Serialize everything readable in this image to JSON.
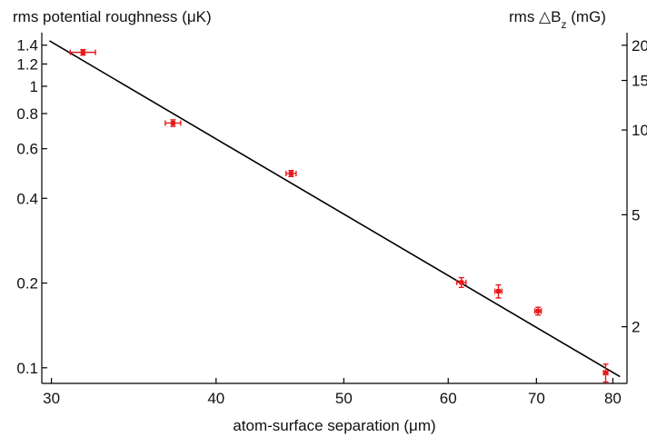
{
  "chart_data": {
    "type": "scatter",
    "title": "",
    "xlabel": "atom-surface separation (μm)",
    "ylabel": "rms potential roughness (μK)",
    "ylabel_right": "rms △B",
    "ylabel_right_sub": "z",
    "ylabel_right_unit": " (mG)",
    "x_scale": "log",
    "y_scale": "log",
    "xlim": [
      29.5,
      82
    ],
    "ylim": [
      0.088,
      1.55
    ],
    "x_ticks": [
      30,
      40,
      50,
      60,
      70,
      80
    ],
    "x_tick_labels": [
      "30",
      "40",
      "50",
      "60",
      "70",
      "80"
    ],
    "y_ticks": [
      0.1,
      0.2,
      0.4,
      0.6,
      0.8,
      1,
      1.2,
      1.4
    ],
    "y_tick_labels": [
      "0.1",
      "0.2",
      "0.4",
      "0.6",
      "0.8",
      "1",
      "1.2",
      "1.4"
    ],
    "y2_ticks": [
      2,
      5,
      10,
      15,
      20
    ],
    "y2_tick_labels": [
      "2",
      "5",
      "10",
      "15",
      "20"
    ],
    "y2_scale_factor": 14.3,
    "grid": false,
    "series": [
      {
        "kind": "points",
        "color": "#e8191c",
        "points": [
          {
            "x": 31.7,
            "y": 1.32,
            "xerr": 0.7,
            "yerr": 0.03
          },
          {
            "x": 37.1,
            "y": 0.74,
            "xerr": 0.5,
            "yerr": 0.02
          },
          {
            "x": 45.6,
            "y": 0.49,
            "xerr": 0.4,
            "yerr": 0.012
          },
          {
            "x": 61.4,
            "y": 0.201,
            "xerr": 0.5,
            "yerr": 0.008
          },
          {
            "x": 65.5,
            "y": 0.187,
            "xerr": 0.4,
            "yerr": 0.01
          },
          {
            "x": 70.2,
            "y": 0.159,
            "xerr": 0.4,
            "yerr": 0.005
          },
          {
            "x": 79.0,
            "y": 0.096,
            "xerr": 0.3,
            "yerr": 0.007
          }
        ]
      },
      {
        "kind": "fit",
        "color": "#000000",
        "x": [
          29.9,
          81.0
        ],
        "y": [
          1.45,
          0.093
        ]
      }
    ]
  }
}
